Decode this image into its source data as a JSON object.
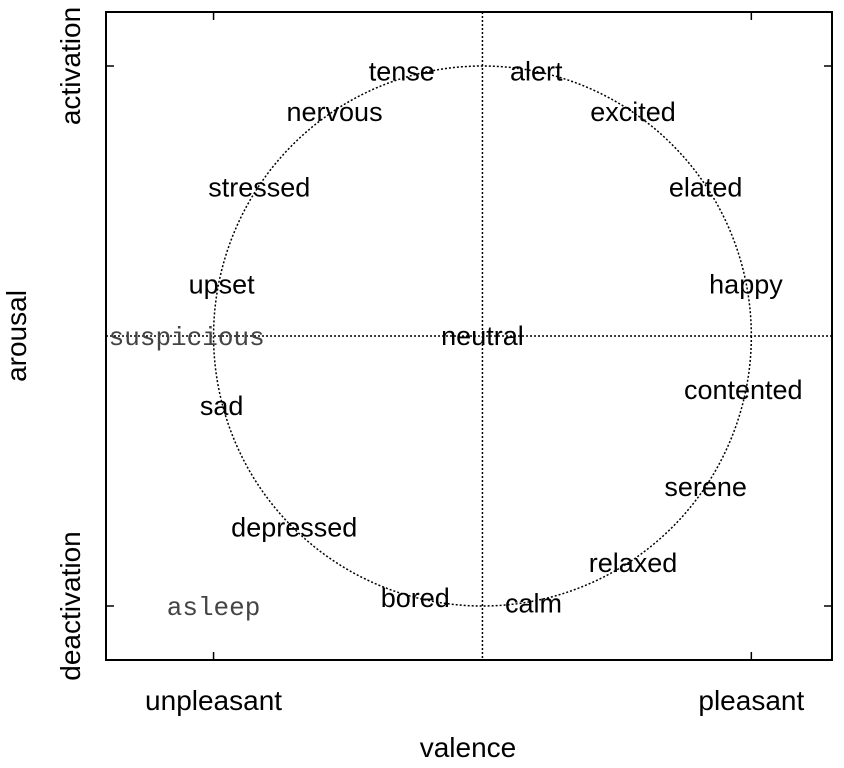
{
  "chart_data": {
    "type": "scatter",
    "xlabel": "valence",
    "ylabel": "arousal",
    "xlim": [
      -1.4,
      1.3
    ],
    "ylim": [
      -1.2,
      1.2
    ],
    "grid": false,
    "x_tick_labels": [
      {
        "value": -1,
        "label": "unpleasant"
      },
      {
        "value": 1,
        "label": "pleasant"
      }
    ],
    "y_tick_labels": [
      {
        "value": 1,
        "label": "activation"
      },
      {
        "value": -1,
        "label": "deactivation"
      }
    ],
    "reference_lines": [
      {
        "orientation": "vertical",
        "value": 0,
        "style": "dotted"
      },
      {
        "orientation": "horizontal",
        "value": 0,
        "style": "dotted"
      }
    ],
    "circle": {
      "center": [
        0,
        0
      ],
      "radius": 1,
      "style": "dotted"
    },
    "points": [
      {
        "label": "tense",
        "x": -0.3,
        "y": 0.98
      },
      {
        "label": "alert",
        "x": 0.2,
        "y": 0.98
      },
      {
        "label": "nervous",
        "x": -0.55,
        "y": 0.83
      },
      {
        "label": "excited",
        "x": 0.56,
        "y": 0.83
      },
      {
        "label": "stressed",
        "x": -0.83,
        "y": 0.55
      },
      {
        "label": "elated",
        "x": 0.83,
        "y": 0.55
      },
      {
        "label": "upset",
        "x": -0.97,
        "y": 0.19
      },
      {
        "label": "happy",
        "x": 0.98,
        "y": 0.19
      },
      {
        "label": "suspicious",
        "x": -1.1,
        "y": 0.0,
        "style": "mono"
      },
      {
        "label": "neutral",
        "x": 0.0,
        "y": 0.0
      },
      {
        "label": "sad",
        "x": -0.97,
        "y": -0.26
      },
      {
        "label": "contented",
        "x": 0.97,
        "y": -0.2
      },
      {
        "label": "serene",
        "x": 0.83,
        "y": -0.56
      },
      {
        "label": "depressed",
        "x": -0.7,
        "y": -0.71
      },
      {
        "label": "relaxed",
        "x": 0.56,
        "y": -0.84
      },
      {
        "label": "bored",
        "x": -0.25,
        "y": -0.97
      },
      {
        "label": "calm",
        "x": 0.19,
        "y": -0.99
      },
      {
        "label": "asleep",
        "x": -1.0,
        "y": -1.0,
        "style": "mono"
      }
    ]
  }
}
